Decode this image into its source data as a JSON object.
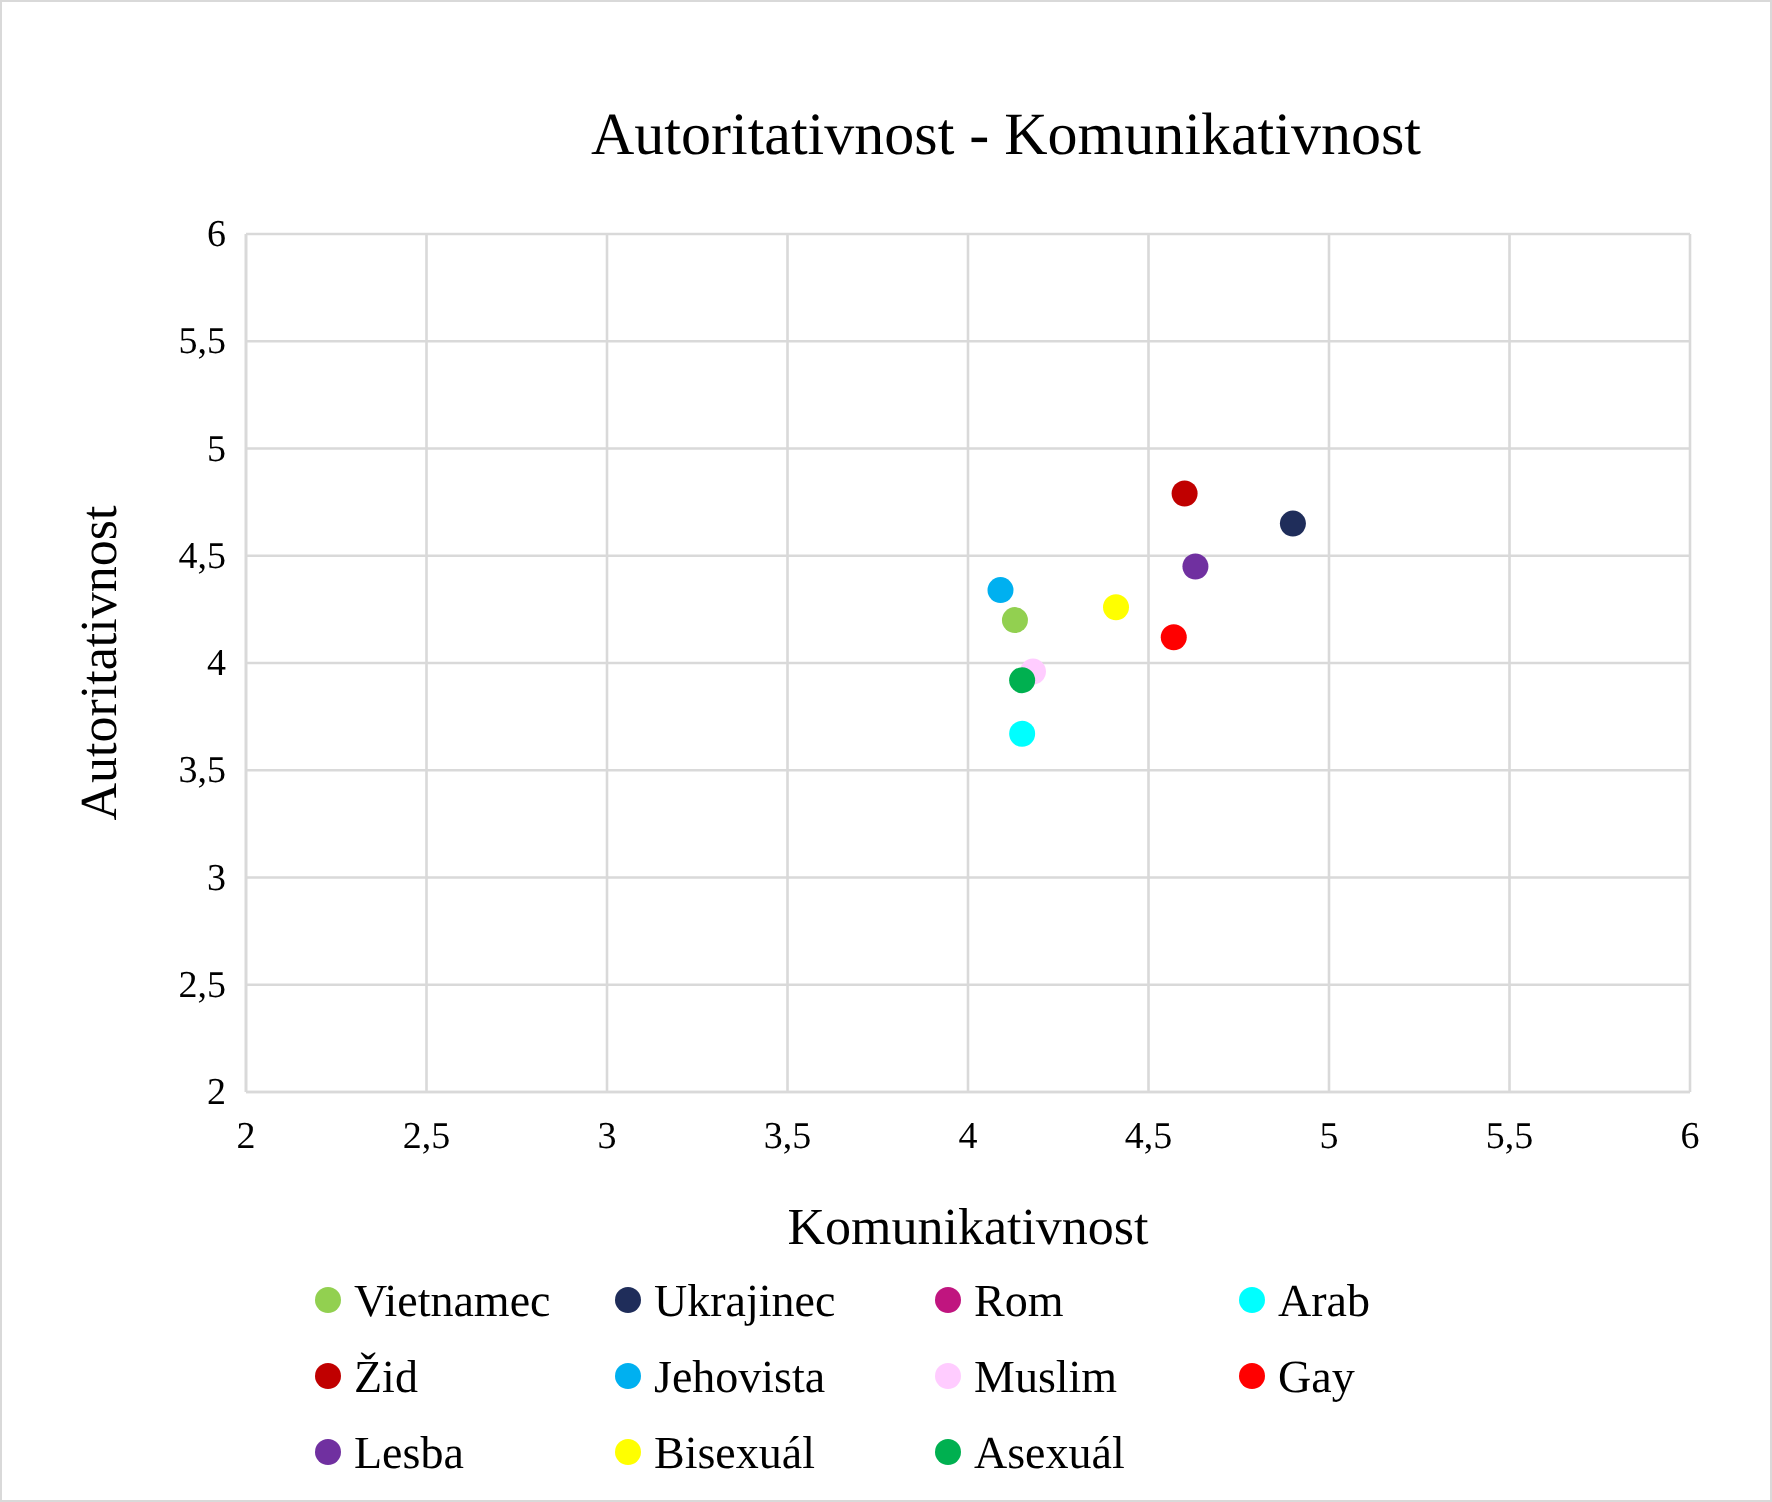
{
  "chart_data": {
    "type": "scatter",
    "title": "Autoritativnost - Komunikativnost",
    "xlabel": "Komunikativnost",
    "ylabel": "Autoritativnost",
    "xlim": [
      2,
      6
    ],
    "ylim": [
      2,
      6
    ],
    "xticks": [
      2,
      {
        "value": 2.5,
        "label": "2,5"
      },
      3,
      {
        "value": 3.5,
        "label": "3,5"
      },
      4,
      {
        "value": 4.5,
        "label": "4,5"
      },
      5,
      {
        "value": 5.5,
        "label": "5,5"
      },
      6
    ],
    "yticks": [
      2,
      {
        "value": 2.5,
        "label": "2,5"
      },
      3,
      {
        "value": 3.5,
        "label": "3,5"
      },
      4,
      {
        "value": 4.5,
        "label": "4,5"
      },
      5,
      {
        "value": 5.5,
        "label": "5,5"
      },
      6
    ],
    "grid": true,
    "legend": "bottom",
    "marker": "circle",
    "series": [
      {
        "name": "Vietnamec",
        "color": "#92d050",
        "x": [
          4.13
        ],
        "values": [
          4.2
        ]
      },
      {
        "name": "Ukrajinec",
        "color": "#1f2d5a",
        "x": [
          4.9
        ],
        "values": [
          4.65
        ]
      },
      {
        "name": "Rom",
        "color": "#c0157f",
        "x": [
          null
        ],
        "values": [
          null
        ]
      },
      {
        "name": "Arab",
        "color": "#00ffff",
        "x": [
          4.15
        ],
        "values": [
          3.67
        ]
      },
      {
        "name": "Žid",
        "color": "#c00000",
        "x": [
          4.6
        ],
        "values": [
          4.79
        ]
      },
      {
        "name": "Jehovista",
        "color": "#00b0f0",
        "x": [
          4.09
        ],
        "values": [
          4.34
        ]
      },
      {
        "name": "Muslim",
        "color": "#ffccff",
        "x": [
          4.18
        ],
        "values": [
          3.96
        ]
      },
      {
        "name": "Gay",
        "color": "#ff0000",
        "x": [
          4.57
        ],
        "values": [
          4.12
        ]
      },
      {
        "name": "Lesba",
        "color": "#7030a0",
        "x": [
          4.63
        ],
        "values": [
          4.45
        ]
      },
      {
        "name": "Bisexuál",
        "color": "#ffff00",
        "x": [
          4.41
        ],
        "values": [
          4.26
        ]
      },
      {
        "name": "Asexuál",
        "color": "#00b050",
        "x": [
          4.15
        ],
        "values": [
          3.92
        ]
      }
    ]
  }
}
